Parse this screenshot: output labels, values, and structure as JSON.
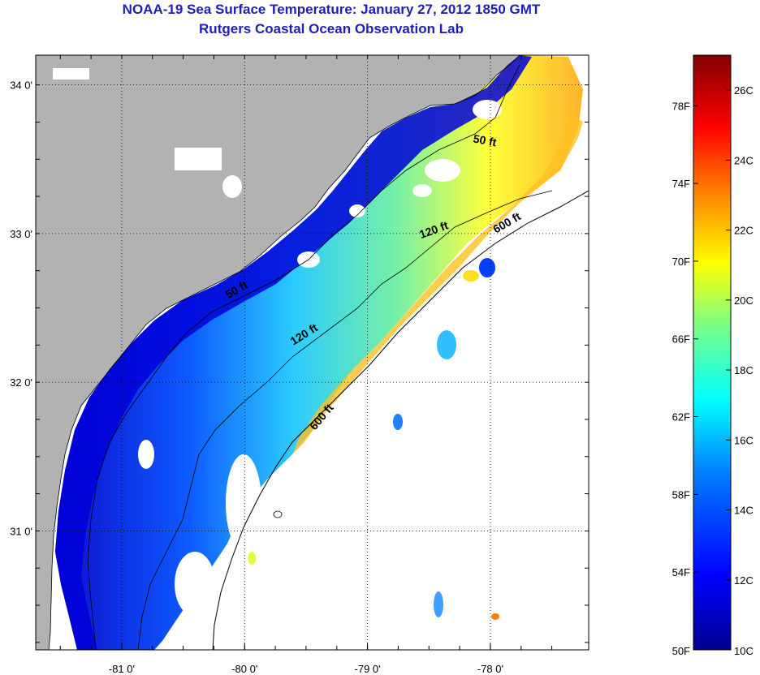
{
  "title": "NOAA-19 Sea Surface Temperature:  January 27, 2012 1850 GMT",
  "subtitle": "Rutgers Coastal Ocean Observation Lab",
  "map": {
    "lon_range": [
      -81.7,
      -77.2
    ],
    "lat_range": [
      30.2,
      34.2
    ],
    "lon_ticks": [
      {
        "value": -81,
        "label": "-81 0'"
      },
      {
        "value": -80,
        "label": "-80 0'"
      },
      {
        "value": -79,
        "label": "-79 0'"
      },
      {
        "value": -78,
        "label": "-78 0'"
      }
    ],
    "lat_ticks": [
      {
        "value": 34,
        "label": "34 0'"
      },
      {
        "value": 33,
        "label": "33 0'"
      },
      {
        "value": 32,
        "label": "32 0'"
      },
      {
        "value": 31,
        "label": "31 0'"
      }
    ],
    "isobaths": [
      {
        "label": "50 ft",
        "lon": -80.05,
        "lat": 32.6,
        "angle": -30
      },
      {
        "label": "50 ft",
        "lon": -78.05,
        "lat": 33.6,
        "angle": 10
      },
      {
        "label": "120 ft",
        "lon": -79.5,
        "lat": 32.3,
        "angle": -32
      },
      {
        "label": "120 ft",
        "lon": -78.45,
        "lat": 33.0,
        "angle": -20
      },
      {
        "label": "600 ft",
        "lon": -79.35,
        "lat": 31.75,
        "angle": -50
      },
      {
        "label": "600 ft",
        "lon": -77.85,
        "lat": 33.05,
        "angle": -30
      }
    ],
    "colors": {
      "land": "#b2b2b2",
      "ocean_nodata": "#ffffff",
      "contour": "#000000",
      "grid": "#000000"
    }
  },
  "colorbar": {
    "range_c": [
      10,
      27
    ],
    "celsius_labels": [
      {
        "value": 26,
        "label": "26C"
      },
      {
        "value": 24,
        "label": "24C"
      },
      {
        "value": 22,
        "label": "22C"
      },
      {
        "value": 20,
        "label": "20C"
      },
      {
        "value": 18,
        "label": "18C"
      },
      {
        "value": 16,
        "label": "16C"
      },
      {
        "value": 14,
        "label": "14C"
      },
      {
        "value": 12,
        "label": "12C"
      },
      {
        "value": 10,
        "label": "10C"
      }
    ],
    "fahrenheit_labels": [
      {
        "value": 78,
        "label": "78F"
      },
      {
        "value": 74,
        "label": "74F"
      },
      {
        "value": 70,
        "label": "70F"
      },
      {
        "value": 66,
        "label": "66F"
      },
      {
        "value": 62,
        "label": "62F"
      },
      {
        "value": 58,
        "label": "58F"
      },
      {
        "value": 54,
        "label": "54F"
      },
      {
        "value": 50,
        "label": "50F"
      }
    ],
    "stops": [
      "#00008f",
      "#0000ff",
      "#0080ff",
      "#00ffff",
      "#80ff80",
      "#ffff00",
      "#ff8000",
      "#ff0000",
      "#800000"
    ]
  }
}
